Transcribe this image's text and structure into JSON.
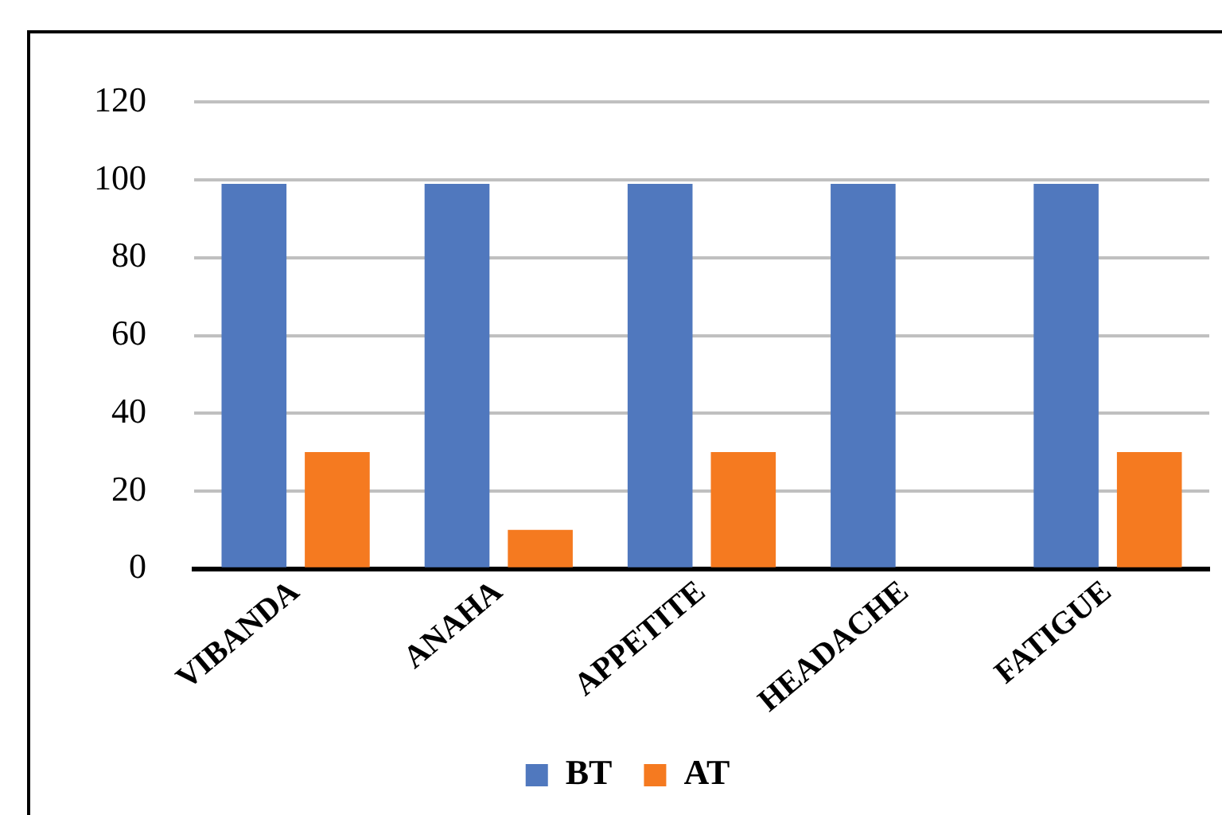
{
  "chart_data": {
    "type": "bar",
    "categories": [
      "VIBANDA",
      "ANAHA",
      "APPETITE",
      "HEADACHE",
      "FATIGUE"
    ],
    "series": [
      {
        "name": "BT",
        "color": "#5078be",
        "values": [
          99,
          99,
          99,
          99,
          99
        ]
      },
      {
        "name": "AT",
        "color": "#f57a20",
        "values": [
          30,
          10,
          30,
          0,
          30
        ]
      }
    ],
    "ylim": [
      0,
      120
    ],
    "yticks": [
      0,
      20,
      40,
      60,
      80,
      100,
      120
    ],
    "grid": "y",
    "legend": "bottom"
  }
}
